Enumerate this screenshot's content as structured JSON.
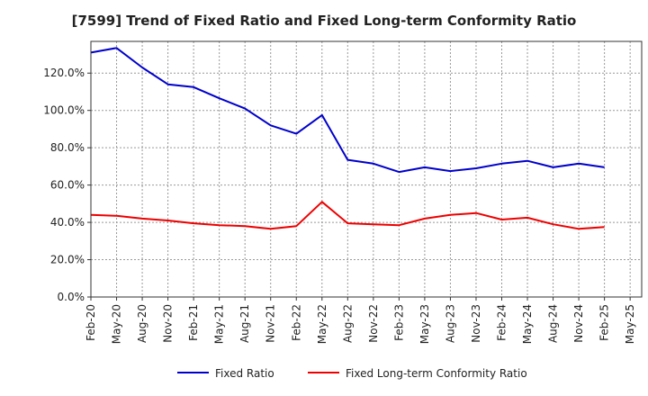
{
  "chart_data": {
    "type": "line",
    "title": "[7599]  Trend of Fixed Ratio and Fixed Long-term Conformity Ratio",
    "xlabel": "",
    "ylabel": "",
    "x": [
      "Feb-20",
      "May-20",
      "Aug-20",
      "Nov-20",
      "Feb-21",
      "May-21",
      "Aug-21",
      "Nov-21",
      "Feb-22",
      "May-22",
      "Aug-22",
      "Nov-22",
      "Feb-23",
      "May-23",
      "Aug-23",
      "Nov-23",
      "Feb-24",
      "May-24",
      "Aug-24",
      "Nov-24",
      "Feb-25"
    ],
    "x_ticks": [
      "Feb-20",
      "May-20",
      "Aug-20",
      "Nov-20",
      "Feb-21",
      "May-21",
      "Aug-21",
      "Nov-21",
      "Feb-22",
      "May-22",
      "Aug-22",
      "Nov-22",
      "Feb-23",
      "May-23",
      "Aug-23",
      "Nov-23",
      "Feb-24",
      "May-24",
      "Aug-24",
      "Nov-24",
      "Feb-25",
      "May-25"
    ],
    "y_ticks": [
      "0.0%",
      "20.0%",
      "40.0%",
      "60.0%",
      "80.0%",
      "100.0%",
      "120.0%"
    ],
    "ylim": [
      0,
      137
    ],
    "grid": true,
    "legend_position": "bottom",
    "series": [
      {
        "name": "Fixed Ratio",
        "color": "#0000cc",
        "values": [
          131,
          133.5,
          123,
          114,
          112.5,
          106.5,
          101,
          92,
          87.5,
          97.5,
          73.5,
          71.5,
          67,
          69.5,
          67.5,
          69,
          71.5,
          73,
          69.5,
          71.5,
          69.5
        ]
      },
      {
        "name": "Fixed Long-term Conformity Ratio",
        "color": "#ee0000",
        "values": [
          44,
          43.5,
          42,
          41,
          39.5,
          38.5,
          38,
          36.5,
          38,
          51,
          39.5,
          39,
          38.5,
          42,
          44,
          45,
          41.5,
          42.5,
          39,
          36.5,
          37.5
        ]
      }
    ]
  }
}
